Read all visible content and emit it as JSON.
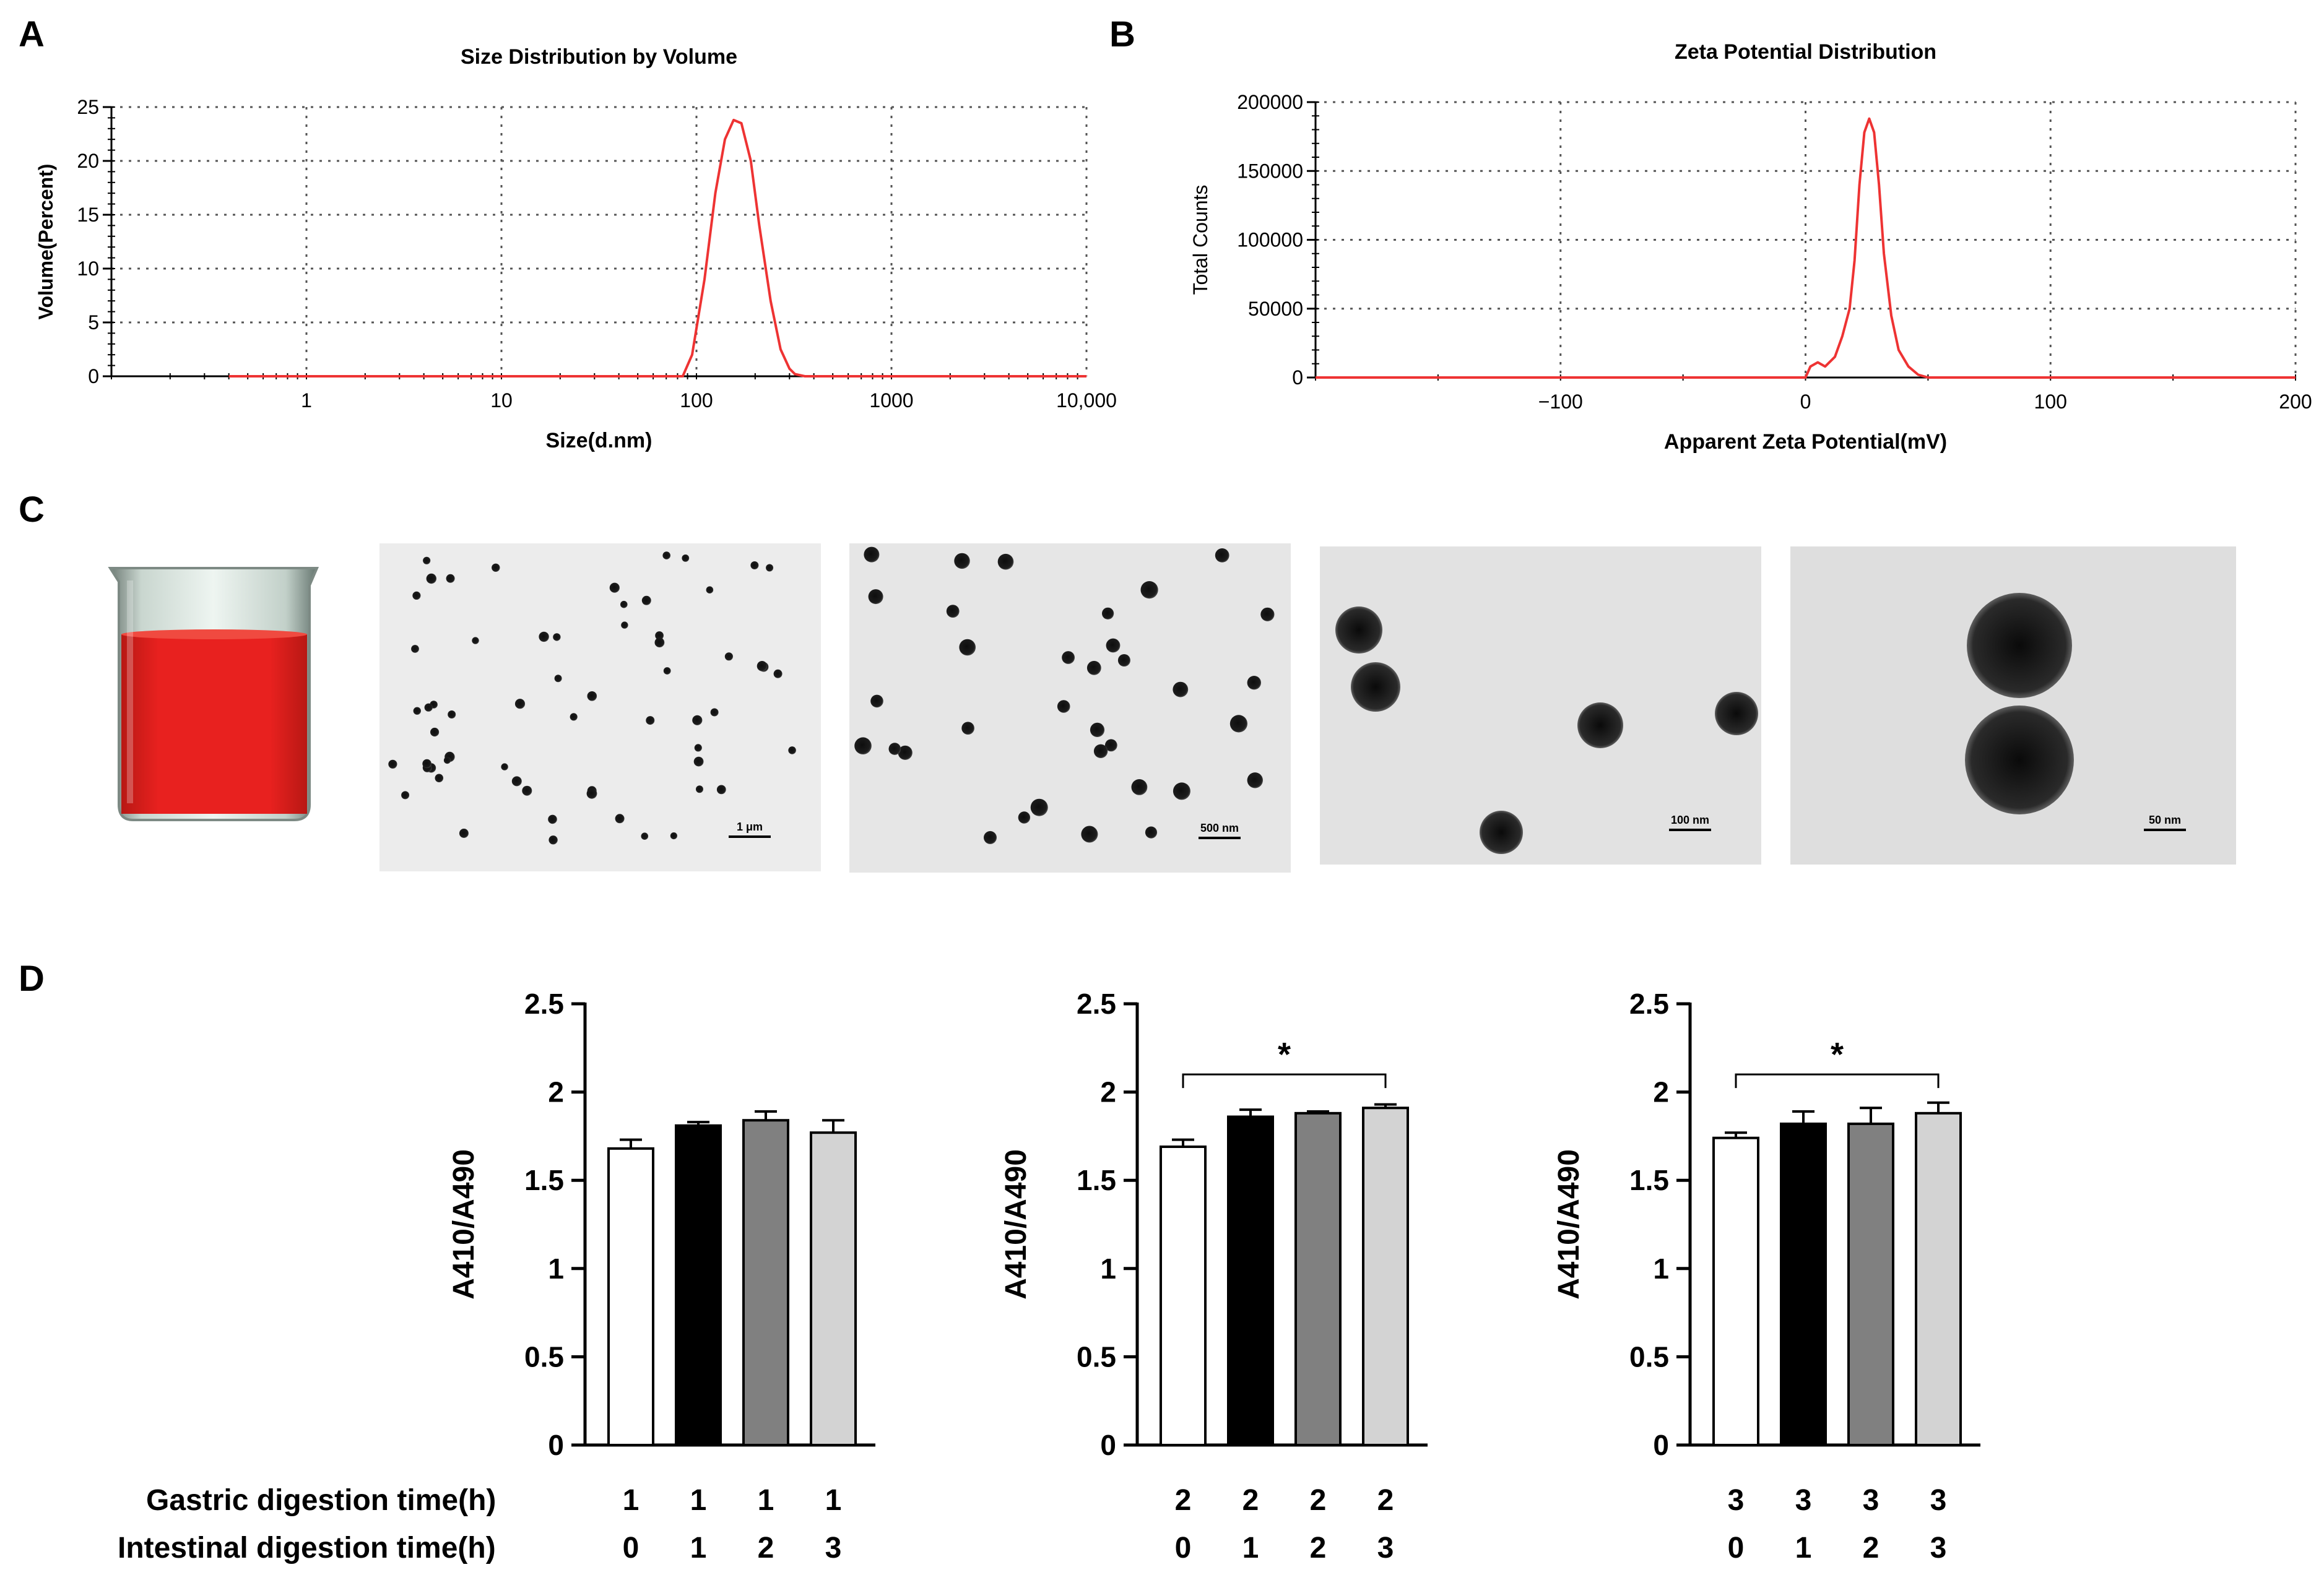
{
  "panels": {
    "A": "A",
    "B": "B",
    "C": "C",
    "D": "D"
  },
  "scale_bars": [
    "1 μm",
    "500 nm",
    "100 nm",
    "50 nm"
  ],
  "colors": {
    "curve": "#ee3333",
    "beaker_liquid": "#e8211f",
    "bar_fills": [
      "#ffffff",
      "#000000",
      "#808080",
      "#d3d3d3"
    ]
  },
  "row_labels": {
    "gastric": "Gastric digestion time(h)",
    "intestinal": "Intestinal digestion time(h)"
  },
  "chart_data": [
    {
      "type": "line",
      "title": "Size Distribution by Volume",
      "xlabel": "Size(d.nm)",
      "ylabel": "Volume(Percent)",
      "x_scale": "log",
      "xlim": [
        0.1,
        10000
      ],
      "ylim": [
        0,
        25
      ],
      "x_ticks": [
        1,
        10,
        100,
        1000,
        10000
      ],
      "x_tick_labels": [
        "1",
        "10",
        "100",
        "1000",
        "10,000"
      ],
      "y_ticks": [
        0,
        5,
        10,
        15,
        20,
        25
      ],
      "y_tick_labels": [
        "0",
        "5",
        "10",
        "15",
        "20",
        "25"
      ],
      "grid": true,
      "series": [
        {
          "x": [
            0.4,
            1,
            10,
            60,
            85,
            95,
            110,
            125,
            140,
            155,
            170,
            190,
            210,
            240,
            270,
            300,
            320,
            360,
            1000,
            10000
          ],
          "values": [
            0,
            0,
            0,
            0,
            0,
            2,
            9,
            17,
            22,
            23.8,
            23.5,
            20,
            14,
            7,
            2.5,
            0.7,
            0.2,
            0,
            0,
            0
          ]
        }
      ]
    },
    {
      "type": "line",
      "title": "Zeta Potential Distribution",
      "xlabel": "Apparent Zeta Potential(mV)",
      "ylabel": "Total Counts",
      "xlim": [
        -200,
        200
      ],
      "ylim": [
        0,
        200000
      ],
      "x_ticks": [
        -100,
        0,
        100,
        200
      ],
      "x_tick_labels": [
        "−100",
        "0",
        "100",
        "200"
      ],
      "y_ticks": [
        0,
        50000,
        100000,
        150000,
        200000
      ],
      "y_tick_labels": [
        "0",
        "50000",
        "100000",
        "150000",
        "200000"
      ],
      "grid": true,
      "series": [
        {
          "x": [
            -200,
            0,
            2,
            5,
            8,
            12,
            15,
            18,
            20,
            22,
            24,
            26,
            28,
            30,
            32,
            35,
            38,
            42,
            46,
            50,
            200
          ],
          "values": [
            0,
            0,
            8000,
            11000,
            8000,
            15000,
            30000,
            50000,
            85000,
            140000,
            178000,
            188000,
            178000,
            140000,
            90000,
            45000,
            20000,
            8000,
            2000,
            0,
            0
          ]
        }
      ]
    },
    {
      "type": "bar",
      "ylabel": "A410/A490",
      "ylim": [
        0,
        2.5
      ],
      "y_ticks": [
        0,
        0.5,
        1,
        1.5,
        2,
        2.5
      ],
      "y_tick_labels": [
        "0",
        "0.5",
        "1",
        "1.5",
        "2",
        "2.5"
      ],
      "gastric": [
        "1",
        "1",
        "1",
        "1"
      ],
      "intestinal": [
        "0",
        "1",
        "2",
        "3"
      ],
      "values": [
        1.68,
        1.81,
        1.84,
        1.77
      ],
      "errors": [
        0.05,
        0.02,
        0.05,
        0.07
      ],
      "significance": null
    },
    {
      "type": "bar",
      "ylabel": "A410/A490",
      "ylim": [
        0,
        2.5
      ],
      "y_ticks": [
        0,
        0.5,
        1,
        1.5,
        2,
        2.5
      ],
      "y_tick_labels": [
        "0",
        "0.5",
        "1",
        "1.5",
        "2",
        "2.5"
      ],
      "gastric": [
        "2",
        "2",
        "2",
        "2"
      ],
      "intestinal": [
        "0",
        "1",
        "2",
        "3"
      ],
      "values": [
        1.69,
        1.86,
        1.88,
        1.91
      ],
      "errors": [
        0.04,
        0.04,
        0.01,
        0.02
      ],
      "significance": {
        "from": 0,
        "to": 3,
        "label": "*"
      }
    },
    {
      "type": "bar",
      "ylabel": "A410/A490",
      "ylim": [
        0,
        2.5
      ],
      "y_ticks": [
        0,
        0.5,
        1,
        1.5,
        2,
        2.5
      ],
      "y_tick_labels": [
        "0",
        "0.5",
        "1",
        "1.5",
        "2",
        "2.5"
      ],
      "gastric": [
        "3",
        "3",
        "3",
        "3"
      ],
      "intestinal": [
        "0",
        "1",
        "2",
        "3"
      ],
      "values": [
        1.74,
        1.82,
        1.82,
        1.88
      ],
      "errors": [
        0.03,
        0.07,
        0.09,
        0.06
      ],
      "significance": {
        "from": 0,
        "to": 3,
        "label": "*"
      }
    }
  ]
}
